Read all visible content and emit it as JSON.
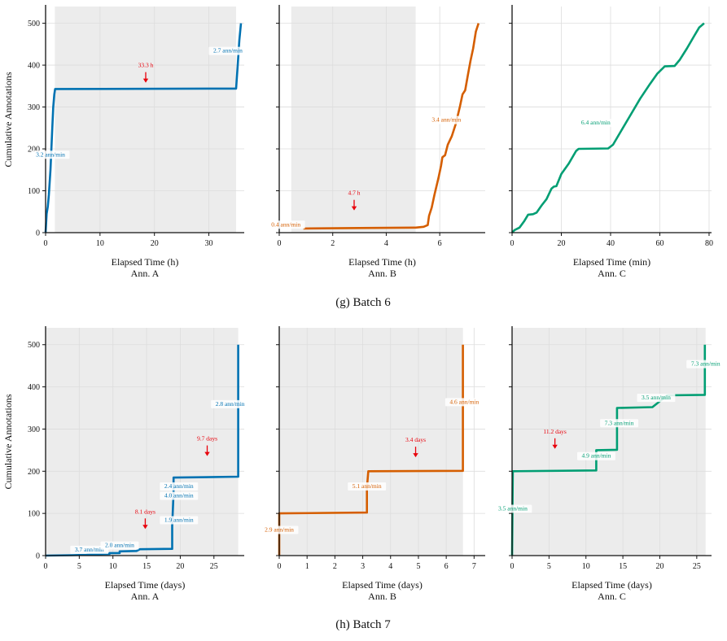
{
  "colors": {
    "A": "#0072b2",
    "B": "#d55e00",
    "C": "#009e73",
    "arrow": "#e8000b",
    "shade": "#ececec",
    "grid": "#dddddd",
    "text": "#111111"
  },
  "captions": [
    "(g) Batch 6",
    "(h) Batch 7"
  ],
  "chart_data": [
    {
      "type": "line",
      "batch": "(g) Batch 6",
      "panel": "Ann. A",
      "xlabel": "Elapsed Time (h)",
      "ylabel": "Cumulative Annotations",
      "xlim": [
        0,
        36.5
      ],
      "ylim": [
        0,
        540
      ],
      "xticks": [
        0,
        10,
        20,
        30
      ],
      "yticks": [
        0,
        100,
        200,
        300,
        400,
        500
      ],
      "shaded": [
        [
          1.7,
          35.0
        ]
      ],
      "series": [
        {
          "color": "#0072b2",
          "points": [
            [
              0,
              0
            ],
            [
              0.2,
              45
            ],
            [
              0.4,
              62
            ],
            [
              0.6,
              90
            ],
            [
              0.9,
              150
            ],
            [
              1.2,
              240
            ],
            [
              1.4,
              300
            ],
            [
              1.6,
              330
            ],
            [
              1.75,
              343
            ],
            [
              35.0,
              344
            ],
            [
              35.3,
              400
            ],
            [
              35.6,
              460
            ],
            [
              35.9,
              500
            ]
          ]
        }
      ],
      "rate_labels": [
        {
          "text": "3.2 ann/min",
          "x": 0.9,
          "y": 182
        },
        {
          "text": "2.7 ann/min",
          "x": 33.5,
          "y": 430
        }
      ],
      "gap_labels": [
        {
          "text": "33.3 h",
          "x": 18.4,
          "y": 360
        }
      ]
    },
    {
      "type": "line",
      "batch": "(g) Batch 6",
      "panel": "Ann. B",
      "xlabel": "Elapsed Time (h)",
      "xlim": [
        0,
        7.7
      ],
      "ylim": [
        0,
        540
      ],
      "xticks": [
        0,
        2,
        4,
        6
      ],
      "yticks": [
        0,
        100,
        200,
        300,
        400,
        500
      ],
      "shaded": [
        [
          0.45,
          5.1
        ]
      ],
      "series": [
        {
          "color": "#d55e00",
          "points": [
            [
              0.9,
              10
            ],
            [
              3,
              11
            ],
            [
              5.1,
              12
            ],
            [
              5.4,
              14
            ],
            [
              5.55,
              18
            ],
            [
              5.6,
              40
            ],
            [
              5.7,
              60
            ],
            [
              5.8,
              90
            ],
            [
              5.95,
              130
            ],
            [
              6.05,
              160
            ],
            [
              6.1,
              180
            ],
            [
              6.2,
              185
            ],
            [
              6.3,
              210
            ],
            [
              6.45,
              230
            ],
            [
              6.6,
              260
            ],
            [
              6.75,
              300
            ],
            [
              6.85,
              330
            ],
            [
              6.95,
              340
            ],
            [
              7.05,
              375
            ],
            [
              7.15,
              410
            ],
            [
              7.25,
              440
            ],
            [
              7.35,
              480
            ],
            [
              7.45,
              500
            ]
          ]
        }
      ],
      "rate_labels": [
        {
          "text": "0.4 ann/min",
          "x": 0.25,
          "y": 15
        },
        {
          "text": "3.4 ann/min",
          "x": 6.25,
          "y": 265
        }
      ],
      "gap_labels": [
        {
          "text": "4.7 h",
          "x": 2.8,
          "y": 55
        }
      ]
    },
    {
      "type": "line",
      "batch": "(g) Batch 6",
      "panel": "Ann. C",
      "xlabel": "Elapsed Time (min)",
      "xlim": [
        0,
        81
      ],
      "ylim": [
        0,
        540
      ],
      "xticks": [
        0,
        20,
        40,
        60,
        80
      ],
      "yticks": [
        0,
        100,
        200,
        300,
        400,
        500
      ],
      "shaded": [],
      "series": [
        {
          "color": "#009e73",
          "points": [
            [
              0,
              0
            ],
            [
              1,
              6
            ],
            [
              3,
              12
            ],
            [
              5,
              28
            ],
            [
              6.5,
              43
            ],
            [
              8.5,
              44
            ],
            [
              10,
              48
            ],
            [
              12,
              65
            ],
            [
              14,
              80
            ],
            [
              16,
              105
            ],
            [
              17,
              110
            ],
            [
              18,
              111
            ],
            [
              20,
              140
            ],
            [
              23,
              165
            ],
            [
              26,
              195
            ],
            [
              27,
              200
            ],
            [
              39,
              201
            ],
            [
              41,
              210
            ],
            [
              44,
              240
            ],
            [
              48,
              280
            ],
            [
              52,
              320
            ],
            [
              56,
              355
            ],
            [
              59,
              380
            ],
            [
              62,
              397
            ],
            [
              66,
              398
            ],
            [
              68,
              412
            ],
            [
              71,
              440
            ],
            [
              74,
              470
            ],
            [
              76,
              490
            ],
            [
              78,
              500
            ]
          ]
        }
      ],
      "rate_labels": [
        {
          "text": "6.4 ann/min",
          "x": 34,
          "y": 258
        }
      ],
      "gap_labels": []
    },
    {
      "type": "line",
      "batch": "(h) Batch 7",
      "panel": "Ann. A",
      "xlabel": "Elapsed Time (days)",
      "ylabel": "Cumulative Annotations",
      "xlim": [
        0,
        29.5
      ],
      "ylim": [
        0,
        540
      ],
      "xticks": [
        0,
        5,
        10,
        15,
        20,
        25
      ],
      "yticks": [
        0,
        100,
        200,
        300,
        400,
        500
      ],
      "shaded": [
        [
          0,
          28.6
        ]
      ],
      "series": [
        {
          "color": "#0072b2",
          "points": [
            [
              0,
              0
            ],
            [
              4,
              1
            ],
            [
              6,
              2
            ],
            [
              6.5,
              3
            ],
            [
              9.5,
              4
            ],
            [
              9.5,
              6
            ],
            [
              11,
              6
            ],
            [
              11,
              10
            ],
            [
              13.5,
              11
            ],
            [
              14,
              15
            ],
            [
              18.8,
              16
            ],
            [
              18.8,
              70
            ],
            [
              19,
              150
            ],
            [
              19,
              185
            ],
            [
              28.6,
              187
            ],
            [
              28.6,
              500
            ]
          ]
        }
      ],
      "rate_labels": [
        {
          "text": "3.7 ann/min",
          "x": 6.5,
          "y": 10
        },
        {
          "text": "2.0 ann/min",
          "x": 11,
          "y": 20
        },
        {
          "text": "1.9 ann/min",
          "x": 19.8,
          "y": 80
        },
        {
          "text": "4.0 ann/min",
          "x": 19.8,
          "y": 138
        },
        {
          "text": "2.4 ann/min",
          "x": 19.8,
          "y": 160
        },
        {
          "text": "2.8 ann/min",
          "x": 27.4,
          "y": 355
        }
      ],
      "gap_labels": [
        {
          "text": "8.1 days",
          "x": 14.8,
          "y": 65
        },
        {
          "text": "9.7 days",
          "x": 24,
          "y": 238
        }
      ]
    },
    {
      "type": "line",
      "batch": "(h) Batch 7",
      "panel": "Ann. B",
      "xlabel": "Elapsed Time (days)",
      "xlim": [
        0,
        7.4
      ],
      "ylim": [
        0,
        540
      ],
      "xticks": [
        0,
        1,
        2,
        3,
        4,
        5,
        6,
        7
      ],
      "yticks": [
        0,
        100,
        200,
        300,
        400,
        500
      ],
      "shaded": [
        [
          0,
          6.6
        ]
      ],
      "series": [
        {
          "color": "#d55e00",
          "points": [
            [
              0,
              0
            ],
            [
              0,
              100
            ],
            [
              3.15,
              102
            ],
            [
              3.15,
              160
            ],
            [
              3.2,
              200
            ],
            [
              6.6,
              201
            ],
            [
              6.6,
              500
            ]
          ]
        }
      ],
      "rate_labels": [
        {
          "text": "2.9 ann/min",
          "x": 0.0,
          "y": 57
        },
        {
          "text": "5.1 ann/min",
          "x": 3.15,
          "y": 160
        },
        {
          "text": "4.6 ann/min",
          "x": 6.65,
          "y": 360
        }
      ],
      "gap_labels": [
        {
          "text": "3.4 days",
          "x": 4.9,
          "y": 235
        }
      ]
    },
    {
      "type": "line",
      "batch": "(h) Batch 7",
      "panel": "Ann. C",
      "xlabel": "Elapsed Time (days)",
      "xlim": [
        0,
        27
      ],
      "ylim": [
        0,
        540
      ],
      "xticks": [
        0,
        5,
        10,
        15,
        20,
        25
      ],
      "yticks": [
        0,
        100,
        200,
        300,
        400,
        500
      ],
      "shaded": [
        [
          0,
          26.2
        ]
      ],
      "series": [
        {
          "color": "#009e73",
          "points": [
            [
              0,
              0
            ],
            [
              0.05,
              110
            ],
            [
              0.1,
              200
            ],
            [
              11.4,
              202
            ],
            [
              11.4,
              250
            ],
            [
              14.2,
              251
            ],
            [
              14.2,
              350
            ],
            [
              19,
              352
            ],
            [
              21,
              380
            ],
            [
              26.1,
              381
            ],
            [
              26.1,
              500
            ]
          ]
        }
      ],
      "rate_labels": [
        {
          "text": "3.5 ann/min",
          "x": 0.1,
          "y": 107
        },
        {
          "text": "4.9 ann/min",
          "x": 11.4,
          "y": 232
        },
        {
          "text": "7.3 ann/min",
          "x": 14.5,
          "y": 310
        },
        {
          "text": "3.5 ann/min",
          "x": 19.5,
          "y": 370
        },
        {
          "text": "7.3 ann/min",
          "x": 26.2,
          "y": 450
        }
      ],
      "gap_labels": [
        {
          "text": "11.2 days",
          "x": 5.8,
          "y": 255
        }
      ]
    }
  ]
}
